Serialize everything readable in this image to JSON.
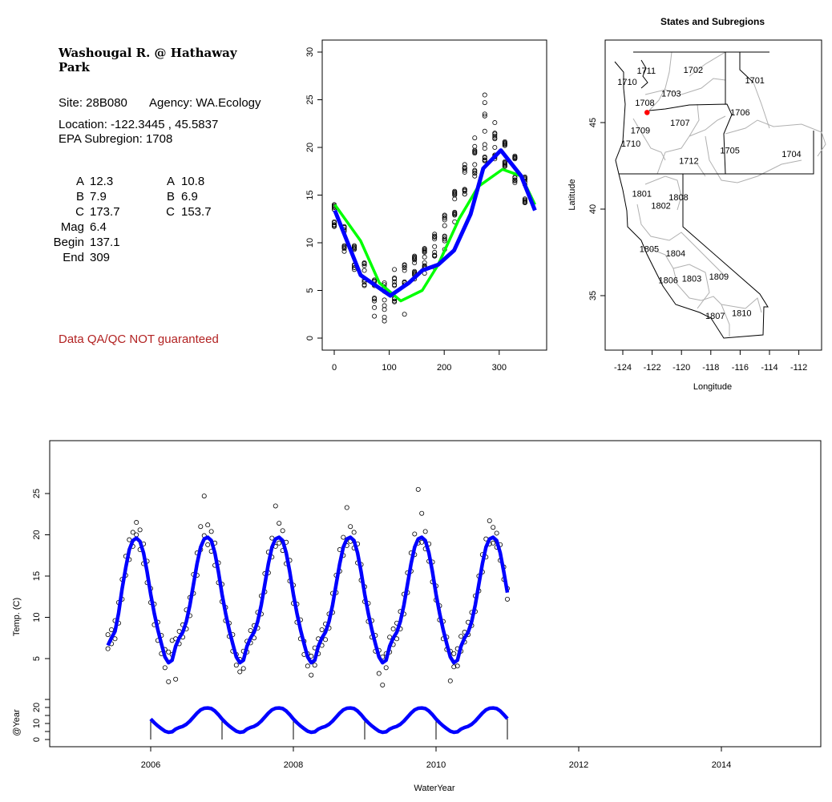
{
  "site_info": {
    "title_line1": "Washougal R. @ Hathaway",
    "title_line2": "Park",
    "site": "Site: 28B080",
    "agency": "Agency: WA.Ecology",
    "location": "Location: -122.3445 , 45.5837",
    "subregion": "EPA Subregion: 1708",
    "params_left": [
      {
        "label": "A",
        "value": "12.3"
      },
      {
        "label": "B",
        "value": "7.9"
      },
      {
        "label": "C",
        "value": "173.7"
      },
      {
        "label": "Mag",
        "value": "6.4"
      },
      {
        "label": "Begin",
        "value": "137.1"
      },
      {
        "label": "End",
        "value": "309"
      }
    ],
    "params_right": [
      {
        "label": "A",
        "value": "10.8"
      },
      {
        "label": "B",
        "value": "6.9"
      },
      {
        "label": "C",
        "value": "153.7"
      }
    ],
    "disclaimer": "Data QA/QC NOT guaranteed",
    "disclaimer_color": "#b22222"
  },
  "chart_data": [
    {
      "type": "scatter",
      "title": "",
      "xlabel": "",
      "ylabel": "",
      "xlim": [
        -5,
        370
      ],
      "ylim": [
        -1,
        31
      ],
      "xticks": [
        "0",
        "100",
        "200",
        "300"
      ],
      "yticks": [
        "0",
        "5",
        "10",
        "15",
        "20",
        "25",
        "30"
      ],
      "points_source": "same observations as the time series, plotted by day of water year",
      "lines": [
        {
          "color": "#0000ff",
          "x": [
            1,
            48,
            102,
            136,
            160,
            189,
            218,
            248,
            271,
            303,
            340,
            365
          ],
          "y": [
            13.4,
            6.6,
            4.45,
            5.8,
            7.1,
            7.7,
            9.2,
            13.0,
            17.8,
            19.7,
            17.0,
            13.4
          ]
        },
        {
          "color": "#00ff00",
          "x": [
            1,
            48,
            82,
            121,
            160,
            189,
            227,
            262,
            306,
            340,
            365
          ],
          "y": [
            14.0,
            10.2,
            5.8,
            3.9,
            5.0,
            7.7,
            12.5,
            15.9,
            17.7,
            17.0,
            14.0
          ]
        }
      ]
    },
    {
      "type": "map",
      "title": "States and Subregions",
      "xlabel": "Longitude",
      "ylabel": "Latitude",
      "xticks": [
        "-124",
        "-122",
        "-120",
        "-118",
        "-116",
        "-114",
        "-112"
      ],
      "yticks": [
        "35",
        "40",
        "45"
      ],
      "site_point": {
        "lon": -122.3445,
        "lat": 45.5837,
        "color": "#ff0000"
      },
      "labels": [
        {
          "text": "1711",
          "lon": -122.4,
          "lat": 48.0
        },
        {
          "text": "1702",
          "lon": -119.2,
          "lat": 48.05
        },
        {
          "text": "1701",
          "lon": -115.0,
          "lat": 47.45
        },
        {
          "text": "1710",
          "lon": -123.7,
          "lat": 47.35
        },
        {
          "text": "1703",
          "lon": -120.7,
          "lat": 46.7
        },
        {
          "text": "1708",
          "lon": -122.5,
          "lat": 46.15
        },
        {
          "text": "1706",
          "lon": -116.0,
          "lat": 45.6
        },
        {
          "text": "1707",
          "lon": -120.1,
          "lat": 45.0
        },
        {
          "text": "1709",
          "lon": -122.8,
          "lat": 44.55
        },
        {
          "text": "1710",
          "lon": -123.45,
          "lat": 43.8
        },
        {
          "text": "1705",
          "lon": -116.7,
          "lat": 43.4
        },
        {
          "text": "1704",
          "lon": -112.5,
          "lat": 43.2
        },
        {
          "text": "1712",
          "lon": -119.5,
          "lat": 42.8
        },
        {
          "text": "1801",
          "lon": -122.7,
          "lat": 40.9
        },
        {
          "text": "1808",
          "lon": -120.2,
          "lat": 40.7
        },
        {
          "text": "1802",
          "lon": -121.4,
          "lat": 40.2
        },
        {
          "text": "1805",
          "lon": -122.2,
          "lat": 37.7
        },
        {
          "text": "1804",
          "lon": -120.4,
          "lat": 37.45
        },
        {
          "text": "1803",
          "lon": -119.3,
          "lat": 36.0
        },
        {
          "text": "1809",
          "lon": -117.45,
          "lat": 36.1
        },
        {
          "text": "1806",
          "lon": -120.9,
          "lat": 35.9
        },
        {
          "text": "1807",
          "lon": -117.7,
          "lat": 33.85
        },
        {
          "text": "1810",
          "lon": -115.9,
          "lat": 34.0
        }
      ]
    },
    {
      "type": "scatter",
      "title": "",
      "xlabel": "WaterYear",
      "ylabel": "Temp. (C)",
      "ylabel_lower": "@Year",
      "xlim": [
        2004.58,
        2015.39
      ],
      "ylim": [
        0,
        31.4
      ],
      "ylim_lower": [
        -4.5,
        25
      ],
      "xticks": [
        "2006",
        "2008",
        "2010",
        "2012",
        "2014"
      ],
      "yticks": [
        "5",
        "10",
        "15",
        "20",
        "25"
      ],
      "yticks_lower": [
        "0",
        "10",
        "20"
      ],
      "fit_color": "#0000ff",
      "year_marks": [
        2006,
        2007,
        2008,
        2009,
        2010,
        2011
      ],
      "x": [
        2005.4,
        2005.45,
        2005.5,
        2005.55,
        2005.6,
        2005.65,
        2005.7,
        2005.75,
        2005.8,
        2005.85,
        2005.9,
        2005.95,
        2006.0,
        2006.05,
        2006.1,
        2006.15,
        2006.2,
        2006.25,
        2006.3,
        2006.35,
        2006.4,
        2006.45,
        2006.5,
        2006.55,
        2006.6,
        2006.65,
        2006.7,
        2006.75,
        2006.8,
        2006.85,
        2006.9,
        2006.95,
        2007.0,
        2007.05,
        2007.1,
        2007.15,
        2007.2,
        2007.25,
        2007.3,
        2007.35,
        2007.4,
        2007.45,
        2007.5,
        2007.55,
        2007.6,
        2007.65,
        2007.7,
        2007.75,
        2007.8,
        2007.85,
        2007.9,
        2007.95,
        2008.0,
        2008.05,
        2008.1,
        2008.15,
        2008.2,
        2008.25,
        2008.3,
        2008.35,
        2008.4,
        2008.45,
        2008.5,
        2008.55,
        2008.6,
        2008.65,
        2008.7,
        2008.75,
        2008.8,
        2008.85,
        2008.9,
        2008.95,
        2009.0,
        2009.05,
        2009.1,
        2009.15,
        2009.2,
        2009.25,
        2009.3,
        2009.35,
        2009.4,
        2009.45,
        2009.5,
        2009.55,
        2009.6,
        2009.65,
        2009.7,
        2009.75,
        2009.8,
        2009.85,
        2009.9,
        2009.95,
        2010.0,
        2010.05,
        2010.1,
        2010.15,
        2010.2,
        2010.25,
        2010.3,
        2010.35,
        2010.4,
        2010.45,
        2010.5,
        2010.55,
        2010.6,
        2010.65,
        2010.7,
        2010.75,
        2010.8,
        2010.85,
        2010.9,
        2010.95,
        2011.0
      ],
      "fit": [
        6.6,
        7.5,
        8.3,
        10.5,
        13.5,
        16,
        18.2,
        19.3,
        19.6,
        19.2,
        17.8,
        15.5,
        12.8,
        10.5,
        8.5,
        6.8,
        5.2,
        4.5,
        4.8,
        6.5,
        7.5,
        8.2,
        9.5,
        11.5,
        14,
        16.5,
        18.5,
        19.5,
        19.7,
        19.3,
        17.8,
        15.5,
        12.8,
        10.5,
        8.5,
        6.8,
        5.2,
        4.5,
        4.8,
        6.5,
        7.5,
        8.2,
        9.5,
        11.5,
        14,
        16.5,
        18.5,
        19.5,
        19.7,
        19.3,
        17.8,
        15.5,
        12.8,
        10.5,
        8.5,
        6.8,
        5.2,
        4.5,
        4.8,
        6.5,
        7.5,
        8.2,
        9.5,
        11.5,
        14,
        16.5,
        18.5,
        19.5,
        19.7,
        19.3,
        17.8,
        15.5,
        12.8,
        10.5,
        8.5,
        6.8,
        5.2,
        4.5,
        4.8,
        6.5,
        7.5,
        8.2,
        9.5,
        11.5,
        14,
        16.5,
        18.5,
        19.5,
        19.7,
        19.3,
        17.8,
        15.5,
        12.8,
        10.5,
        8.5,
        6.8,
        5.2,
        4.5,
        4.8,
        6.5,
        7.5,
        8.2,
        9.5,
        11.5,
        14,
        16.5,
        18.5,
        19.5,
        19.7,
        19.3,
        17.8,
        15.5,
        13.0
      ],
      "obs": [
        [
          6.2,
          7.9
        ],
        [
          8.5,
          6.8
        ],
        [
          9.6,
          7.4
        ],
        [
          11.8,
          9.3
        ],
        [
          14.6,
          12.2
        ],
        [
          15.1,
          17.4
        ],
        [
          19.4,
          17.0
        ],
        [
          20.3,
          18.6
        ],
        [
          21.5,
          20.0
        ],
        [
          20.6,
          18.2
        ],
        [
          18.9,
          16.5
        ],
        [
          16.8,
          14.2
        ],
        [
          13.5,
          11.8
        ],
        [
          11.6,
          9.1
        ],
        [
          9.4,
          7.2
        ],
        [
          7.8,
          5.6
        ],
        [
          3.9,
          6.1
        ],
        [
          2.2,
          5.8
        ],
        [
          7.2,
          5.5
        ],
        [
          7.4,
          2.5
        ],
        [
          6.8,
          8.3
        ],
        [
          9.1,
          7.6
        ],
        [
          10.9,
          8.6
        ],
        [
          12.4,
          10.2
        ],
        [
          15.2,
          12.9
        ],
        [
          17.8,
          15.1
        ],
        [
          21.0,
          18.2
        ],
        [
          24.7,
          19.9
        ],
        [
          21.2,
          18.8
        ],
        [
          20.4,
          18.0
        ],
        [
          19.0,
          16.3
        ],
        [
          16.6,
          14.2
        ],
        [
          14.0,
          11.9
        ],
        [
          11.2,
          9.6
        ],
        [
          9.3,
          7.7
        ],
        [
          7.9,
          5.9
        ],
        [
          5.5,
          4.2
        ],
        [
          3.4,
          4.9
        ],
        [
          5.9,
          3.8
        ],
        [
          7.1,
          5.8
        ],
        [
          8.4,
          6.9
        ],
        [
          9.0,
          7.5
        ],
        [
          10.6,
          8.7
        ],
        [
          12.6,
          10.4
        ],
        [
          15.3,
          13.1
        ],
        [
          17.9,
          15.4
        ],
        [
          19.6,
          17.3
        ],
        [
          23.5,
          18.6
        ],
        [
          21.4,
          19.0
        ],
        [
          20.5,
          18.1
        ],
        [
          19.1,
          16.5
        ],
        [
          16.9,
          14.4
        ],
        [
          13.9,
          11.7
        ],
        [
          11.6,
          9.4
        ],
        [
          9.7,
          7.4
        ],
        [
          7.1,
          5.5
        ],
        [
          5.6,
          4.1
        ],
        [
          3.0,
          5.3
        ],
        [
          6.3,
          4.2
        ],
        [
          7.4,
          5.6
        ],
        [
          8.5,
          6.6
        ],
        [
          9.2,
          7.3
        ],
        [
          10.4,
          8.7
        ],
        [
          12.9,
          10.6
        ],
        [
          15.1,
          13.0
        ],
        [
          18.2,
          15.6
        ],
        [
          19.7,
          17.5
        ],
        [
          23.3,
          18.7
        ],
        [
          21.0,
          19.2
        ],
        [
          20.3,
          18.4
        ],
        [
          18.9,
          16.6
        ],
        [
          16.4,
          14.5
        ],
        [
          13.7,
          11.9
        ],
        [
          11.7,
          9.5
        ],
        [
          9.6,
          7.6
        ],
        [
          7.8,
          5.9
        ],
        [
          6.0,
          3.2
        ],
        [
          1.8,
          5.2
        ],
        [
          5.6,
          3.9
        ],
        [
          7.6,
          5.8
        ],
        [
          8.6,
          6.7
        ],
        [
          9.3,
          7.4
        ],
        [
          10.7,
          8.6
        ],
        [
          12.8,
          10.4
        ],
        [
          15.4,
          13.0
        ],
        [
          17.8,
          15.6
        ],
        [
          20.1,
          17.6
        ],
        [
          25.5,
          19.0
        ],
        [
          22.6,
          19.1
        ],
        [
          20.4,
          18.3
        ],
        [
          18.9,
          16.8
        ],
        [
          16.7,
          14.3
        ],
        [
          13.8,
          12.1
        ],
        [
          11.4,
          9.7
        ],
        [
          9.5,
          7.4
        ],
        [
          7.6,
          6.1
        ],
        [
          5.9,
          2.3
        ],
        [
          4.0,
          5.6
        ],
        [
          6.2,
          4.1
        ],
        [
          7.7,
          5.9
        ],
        [
          8.2,
          7.0
        ],
        [
          9.4,
          7.9
        ],
        [
          10.6,
          9.0
        ],
        [
          12.6,
          10.7
        ],
        [
          15.0,
          13.2
        ],
        [
          17.6,
          15.5
        ],
        [
          19.5,
          17.3
        ],
        [
          21.7,
          18.9
        ],
        [
          20.9,
          19.0
        ],
        [
          20.2,
          18.5
        ],
        [
          18.8,
          16.9
        ],
        [
          16.1,
          14.6
        ],
        [
          13.5,
          12.2
        ]
      ]
    }
  ]
}
